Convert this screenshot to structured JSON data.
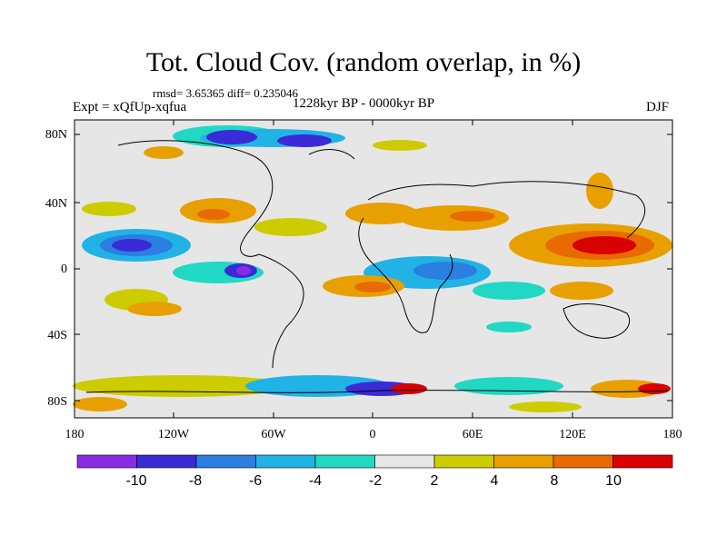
{
  "title": "Tot. Cloud Cov. (random overlap, in %)",
  "stats": "rmsd= 3.65365 diff= 0.235046",
  "experiment": "Expt = xQfUp-xqfua",
  "period": "1228kyr BP - 0000kyr BP",
  "season": "DJF",
  "lat_ticks": [
    "80N",
    "40N",
    "0",
    "40S",
    "80S"
  ],
  "lon_ticks": [
    "180",
    "120W",
    "60W",
    "0",
    "60E",
    "120E",
    "180"
  ],
  "colorbar": {
    "labels": [
      "-10",
      "-8",
      "-6",
      "-4",
      "-2",
      "2",
      "4",
      "8",
      "10"
    ],
    "colors": [
      "#8a2be2",
      "#3a2bd6",
      "#2a7fe0",
      "#22b3e6",
      "#20d8c4",
      "#e6e6e6",
      "#cccc00",
      "#e8a000",
      "#e86a00",
      "#d90000"
    ]
  }
}
